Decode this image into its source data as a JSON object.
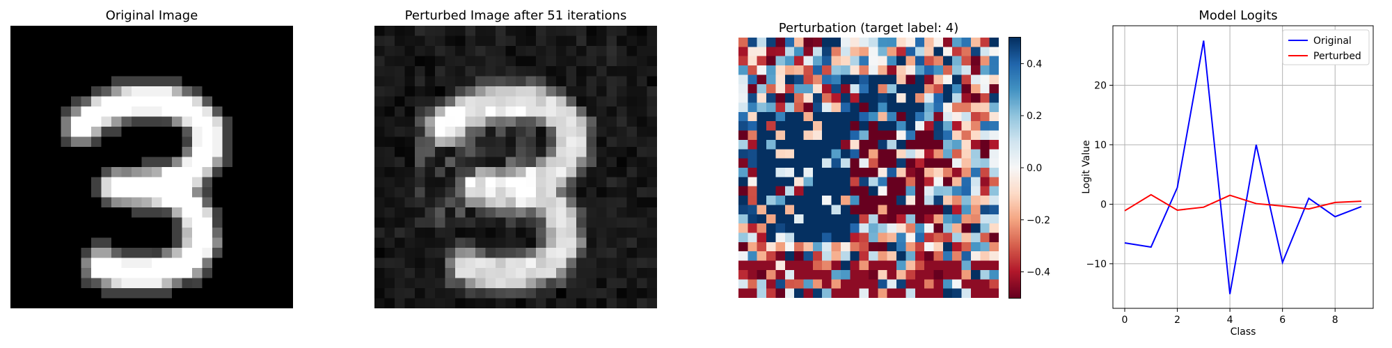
{
  "panels": {
    "original": {
      "title": "Original Image"
    },
    "perturbed": {
      "title": "Perturbed Image after 51 iterations"
    },
    "perturbation": {
      "title": "Perturbation (target label: 4)"
    }
  },
  "colormaps": {
    "images": "gray",
    "perturbation": "RdBu"
  },
  "colorbar": {
    "ticks": [
      0.4,
      0.2,
      0.0,
      -0.2,
      -0.4
    ],
    "tick_labels": [
      "0.4",
      "0.2",
      "0.0",
      "−0.2",
      "−0.4"
    ],
    "range": [
      -0.5,
      0.5
    ]
  },
  "chart_data": [
    {
      "type": "heatmap",
      "title": "Original Image",
      "description_of_content": "handwritten digit 3, 28x28 grayscale",
      "colormap": "gray"
    },
    {
      "type": "heatmap",
      "title": "Perturbed Image after 51 iterations",
      "colormap": "gray"
    },
    {
      "type": "heatmap",
      "title": "Perturbation (target label: 4)",
      "colormap": "RdBu",
      "colorbar_range": [
        -0.5,
        0.5
      ]
    },
    {
      "type": "line",
      "title": "Model Logits",
      "xlabel": "Class",
      "ylabel": "Logit Value",
      "x": [
        0,
        1,
        2,
        3,
        4,
        5,
        6,
        7,
        8,
        9
      ],
      "xticks": [
        0,
        2,
        4,
        6,
        8
      ],
      "yticks": [
        -10,
        0,
        10,
        20
      ],
      "xlim": [
        -0.45,
        9.45
      ],
      "ylim": [
        -17.5,
        30
      ],
      "grid": true,
      "legend_position": "top-right",
      "series": [
        {
          "name": "Original",
          "color": "#0000ff",
          "values": [
            -6.5,
            -7.2,
            2.8,
            27.5,
            -15.1,
            10.0,
            -9.8,
            1.0,
            -2.1,
            -0.4
          ]
        },
        {
          "name": "Perturbed",
          "color": "#ff0000",
          "values": [
            -1.1,
            1.6,
            -1.0,
            -0.5,
            1.5,
            0.1,
            -0.3,
            -0.8,
            0.3,
            0.5
          ]
        }
      ]
    }
  ]
}
